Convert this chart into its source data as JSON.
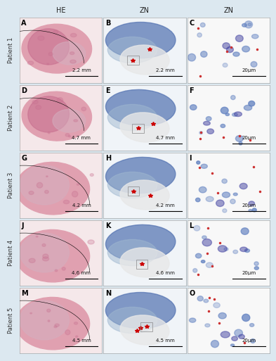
{
  "title": "",
  "col_headers": [
    "HE",
    "ZN",
    "ZN"
  ],
  "row_labels": [
    "Patient 1",
    "Patient 2",
    "Patient 3",
    "Patient 4",
    "Patient 5"
  ],
  "cell_letters": [
    [
      "A",
      "B",
      "C"
    ],
    [
      "D",
      "E",
      "F"
    ],
    [
      "G",
      "H",
      "I"
    ],
    [
      "J",
      "K",
      "L"
    ],
    [
      "M",
      "N",
      "O"
    ]
  ],
  "scale_bars": [
    [
      "2.2 mm",
      "2.2 mm",
      "20μm"
    ],
    [
      "4.7 mm",
      "4.7 mm",
      "20μm"
    ],
    [
      "4.2 mm",
      "4.2 mm",
      "20μm"
    ],
    [
      "4.6 mm",
      "4.6 mm",
      "20μm"
    ],
    [
      "4.5 mm",
      "4.5 mm",
      "20μm"
    ]
  ],
  "background_color": "#dce8f0",
  "cell_bg_color": "#ffffff",
  "label_bg_color": "#dce8f0",
  "letter_color": "#000000",
  "header_fontsize": 7,
  "letter_fontsize": 7,
  "scalebar_fontsize": 5,
  "patient_fontsize": 6,
  "n_rows": 5,
  "n_cols": 3,
  "he_bg": "#f5e8ea",
  "he_tissue1": "#c87090",
  "he_tissue2": "#e0a0b0",
  "he_tissue3": "#d4b0c0",
  "zn_bg": "#f0f4f8",
  "zn_blue": "#5070b0",
  "zn_light": "#a0b8d0",
  "zn_necrotic": "#e8e8e8",
  "zn_close_bg": "#f8f8f8",
  "zn_close_blue": "#6080c0",
  "zn_close_dark": "#4040a0",
  "zn_bacteria": "#cc3030",
  "star_color": "#cc0000",
  "box_color": "#888888"
}
